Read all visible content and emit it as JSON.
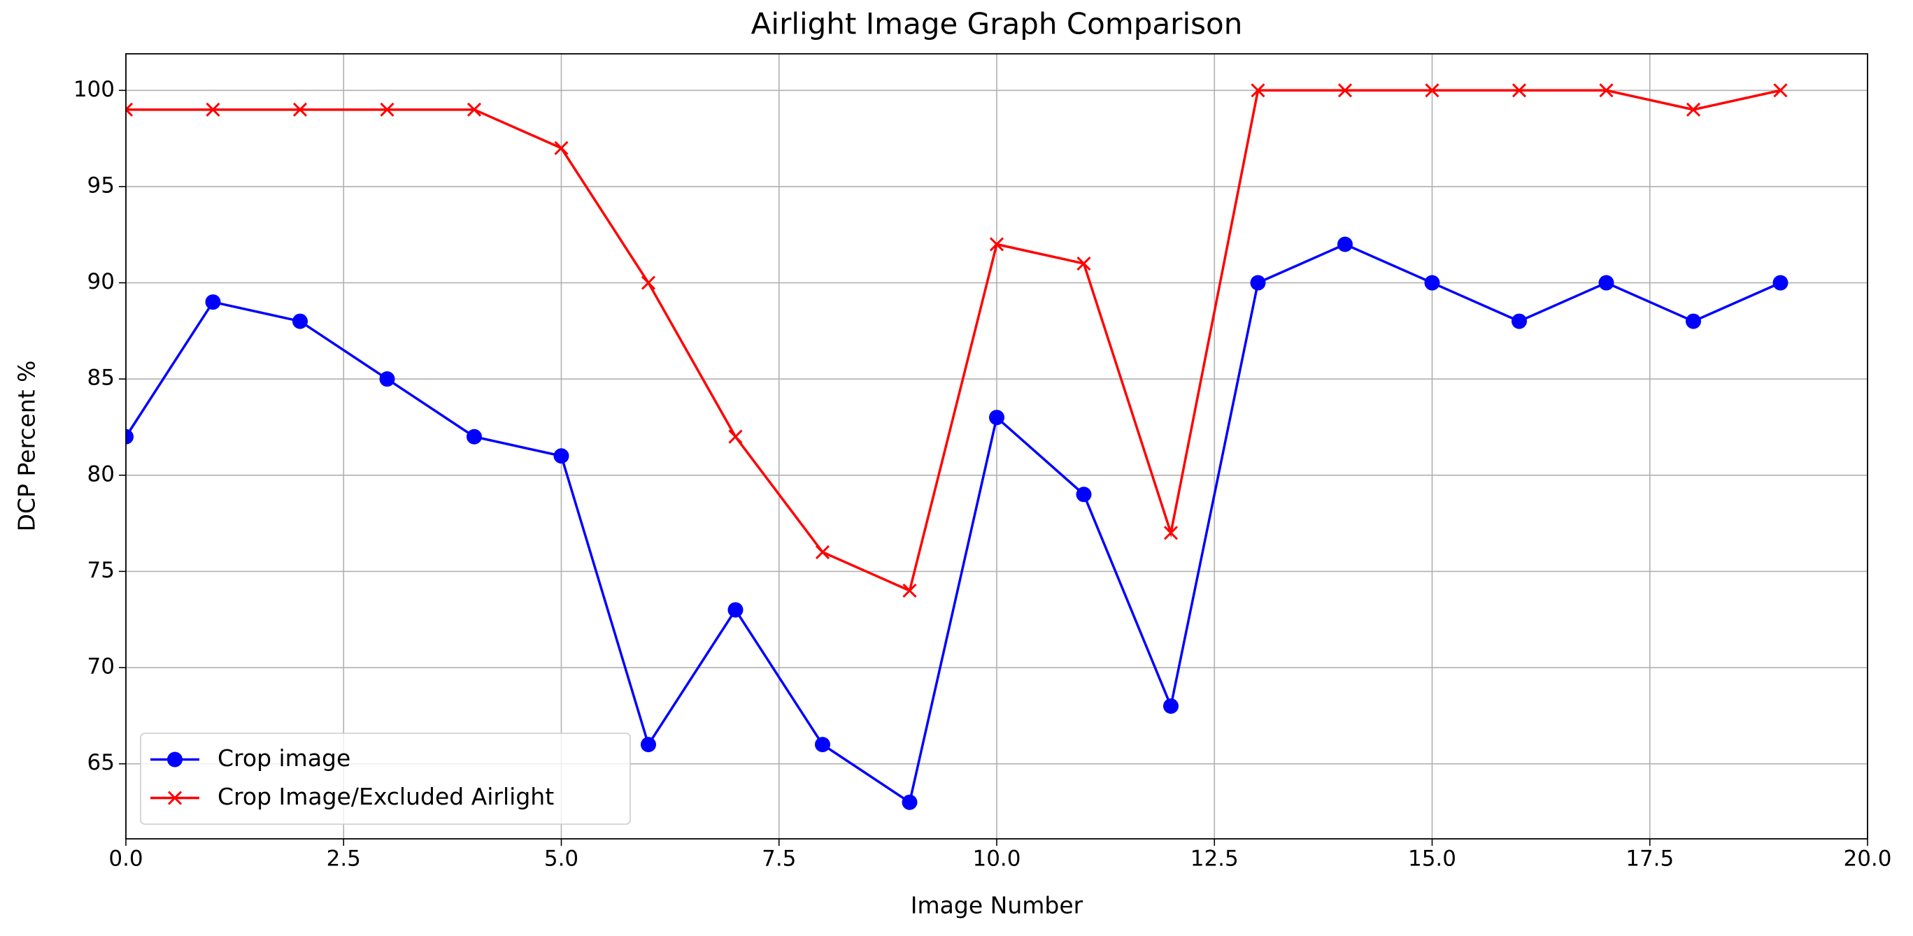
{
  "chart_data": {
    "type": "line",
    "title": "Airlight Image Graph Comparison",
    "x_label": "Image Number",
    "y_label": "DCP Percent %",
    "x": [
      0,
      1,
      2,
      3,
      4,
      5,
      6,
      7,
      8,
      9,
      10,
      11,
      12,
      13,
      14,
      15,
      16,
      17,
      18,
      19
    ],
    "series": [
      {
        "name": "Crop image",
        "color": "#0000ff",
        "marker": "o",
        "values": [
          82,
          89,
          88,
          85,
          82,
          81,
          66,
          73,
          66,
          63,
          83,
          79,
          68,
          90,
          92,
          90,
          88,
          90,
          88,
          90
        ]
      },
      {
        "name": "Crop Image/Excluded Airlight",
        "color": "#ff0000",
        "marker": "x",
        "values": [
          99,
          99,
          99,
          99,
          99,
          97,
          90,
          82,
          76,
          74,
          92,
          91,
          77,
          100,
          100,
          100,
          100,
          100,
          99,
          100
        ]
      }
    ],
    "xlim": [
      0,
      20
    ],
    "xticks": [
      {
        "value": 0,
        "label": "0.0"
      },
      2.5,
      {
        "value": 5,
        "label": "5.0"
      },
      7.5,
      {
        "value": 10,
        "label": "10.0"
      },
      12.5,
      {
        "value": 15,
        "label": "15.0"
      },
      17.5,
      {
        "value": 20,
        "label": "20.0"
      }
    ],
    "ylim": [
      61.1,
      101.9
    ],
    "yticks": [
      65,
      70,
      75,
      80,
      85,
      90,
      95,
      100
    ],
    "grid": true,
    "legend": "lower left"
  }
}
